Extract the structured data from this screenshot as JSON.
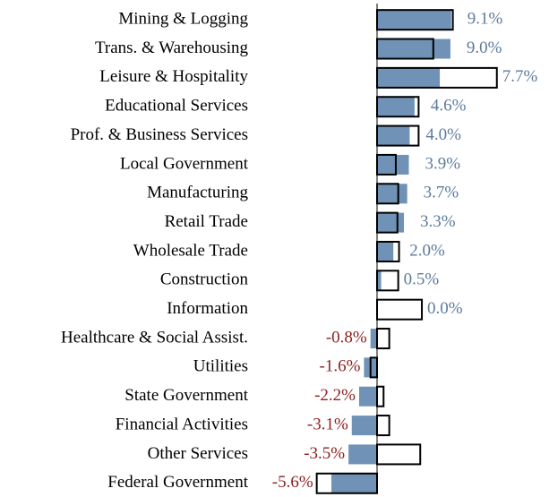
{
  "chart_data": {
    "type": "bar",
    "orientation": "horizontal",
    "categories": [
      "Mining & Logging",
      "Trans. & Warehousing",
      "Leisure & Hospitality",
      "Educational Services",
      "Prof. & Business Services",
      "Local Government",
      "Manufacturing",
      "Retail Trade",
      "Wholesale Trade",
      "Construction",
      "Information",
      "Healthcare & Social Assist.",
      "Utilities",
      "State Government",
      "Financial Activities",
      "Other Services",
      "Federal Government"
    ],
    "series": [
      {
        "color": "#6f92b6",
        "style": "filled",
        "values": [
          9.1,
          9.0,
          7.7,
          4.6,
          4.0,
          3.9,
          3.7,
          3.3,
          2.0,
          0.5,
          0.0,
          -0.8,
          -1.6,
          -2.2,
          -3.1,
          -3.5,
          -5.6
        ],
        "value_labels": [
          "9.1%",
          "9.0%",
          "7.7%",
          "4.6%",
          "4.0%",
          "3.9%",
          "3.7%",
          "3.3%",
          "2.0%",
          "0.5%",
          "0.0%",
          "-0.8%",
          "-1.6%",
          "-2.2%",
          "-3.1%",
          "-3.5%",
          "-5.6%"
        ]
      },
      {
        "color": "#000000",
        "style": "outline",
        "values": [
          9.3,
          6.9,
          14.7,
          5.1,
          5.1,
          2.3,
          2.6,
          2.5,
          2.7,
          2.6,
          5.5,
          1.5,
          -0.8,
          0.8,
          1.5,
          5.3,
          -7.4
        ]
      }
    ],
    "positive_label_color": "#5d7b9c",
    "negative_label_color": "#8b1f1f",
    "xlim": [
      -7.5,
      15
    ]
  }
}
